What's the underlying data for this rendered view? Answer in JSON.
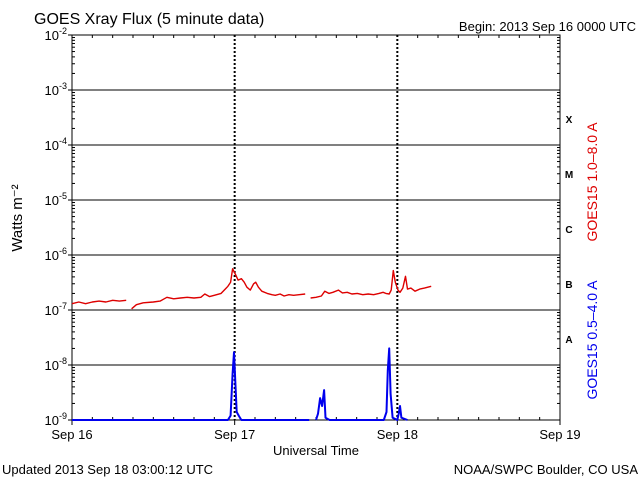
{
  "header": {
    "title": "GOES Xray Flux (5 minute data)",
    "begin_label": "Begin:  2013 Sep 16 0000 UTC"
  },
  "footer": {
    "updated": "Updated 2013 Sep 18 03:00:12 UTC",
    "credit": "NOAA/SWPC Boulder, CO USA"
  },
  "colors": {
    "long_channel": "#dd0000",
    "short_channel": "#0000ee"
  },
  "chart_data": {
    "type": "line",
    "title": "GOES Xray Flux (5 minute data)",
    "xlabel": "Universal Time",
    "ylabel": "Watts m⁻²",
    "y_scale": "log",
    "ylim": [
      1e-09,
      0.01
    ],
    "xlim": [
      0,
      72
    ],
    "x_unit": "hours since 2013 Sep 16 0000 UTC",
    "x_ticks": [
      {
        "value": 0,
        "label": "Sep 16"
      },
      {
        "value": 24,
        "label": "Sep 17"
      },
      {
        "value": 48,
        "label": "Sep 18"
      },
      {
        "value": 72,
        "label": "Sep 19"
      }
    ],
    "y_ticks": [
      {
        "exp": "-9",
        "value": 1e-09
      },
      {
        "exp": "-8",
        "value": 1e-08
      },
      {
        "exp": "-7",
        "value": 1e-07
      },
      {
        "exp": "-6",
        "value": 1e-06
      },
      {
        "exp": "-5",
        "value": 1e-05
      },
      {
        "exp": "-4",
        "value": 0.0001
      },
      {
        "exp": "-3",
        "value": 0.001
      },
      {
        "exp": "-2",
        "value": 0.01
      }
    ],
    "flare_classes": [
      {
        "label": "A",
        "value": 3e-08
      },
      {
        "label": "B",
        "value": 3e-07
      },
      {
        "label": "C",
        "value": 3e-06
      },
      {
        "label": "M",
        "value": 3e-05
      },
      {
        "label": "X",
        "value": 0.0003
      }
    ],
    "grid": true,
    "series": [
      {
        "name": "GOES15 1.0–8.0 A",
        "color": "#dd0000",
        "segments": [
          [
            [
              0,
              1.3e-07
            ],
            [
              1,
              1.4e-07
            ],
            [
              2,
              1.3e-07
            ],
            [
              3,
              1.4e-07
            ],
            [
              4,
              1.45e-07
            ],
            [
              5,
              1.4e-07
            ],
            [
              6,
              1.5e-07
            ],
            [
              7,
              1.45e-07
            ],
            [
              8,
              1.5e-07
            ]
          ],
          [
            [
              8.8,
              1.05e-07
            ],
            [
              9.5,
              1.25e-07
            ],
            [
              10.5,
              1.35e-07
            ],
            [
              12,
              1.4e-07
            ],
            [
              13,
              1.45e-07
            ],
            [
              13.6,
              1.6e-07
            ],
            [
              14,
              1.7e-07
            ],
            [
              15,
              1.6e-07
            ],
            [
              16,
              1.65e-07
            ],
            [
              17,
              1.7e-07
            ],
            [
              18,
              1.65e-07
            ],
            [
              19,
              1.7e-07
            ],
            [
              19.6,
              1.95e-07
            ],
            [
              20.3,
              1.75e-07
            ],
            [
              21,
              1.85e-07
            ],
            [
              22,
              2e-07
            ],
            [
              22.6,
              2.4e-07
            ],
            [
              23,
              2.7e-07
            ],
            [
              23.4,
              3.2e-07
            ],
            [
              23.7,
              5.6e-07
            ],
            [
              24.1,
              4.5e-07
            ],
            [
              24.5,
              3.5e-07
            ],
            [
              25,
              3.7e-07
            ],
            [
              25.4,
              3.2e-07
            ],
            [
              25.8,
              2.6e-07
            ],
            [
              26.3,
              2.3e-07
            ],
            [
              26.8,
              3e-07
            ],
            [
              27.1,
              3.2e-07
            ],
            [
              27.5,
              2.6e-07
            ],
            [
              28,
              2.2e-07
            ],
            [
              28.8,
              2e-07
            ],
            [
              29.5,
              1.9e-07
            ],
            [
              30,
              1.85e-07
            ],
            [
              30.7,
              1.95e-07
            ],
            [
              31.3,
              1.8e-07
            ],
            [
              32,
              1.9e-07
            ],
            [
              32.7,
              1.85e-07
            ],
            [
              33.5,
              1.9e-07
            ],
            [
              34.4,
              1.95e-07
            ]
          ],
          [
            [
              35.2,
              1.65e-07
            ],
            [
              36,
              1.7e-07
            ],
            [
              36.8,
              1.8e-07
            ],
            [
              37.3,
              2.2e-07
            ],
            [
              37.9,
              2e-07
            ],
            [
              38.5,
              2.1e-07
            ],
            [
              39.3,
              2.3e-07
            ],
            [
              39.9,
              2.05e-07
            ],
            [
              40.6,
              2.1e-07
            ],
            [
              41.3,
              1.95e-07
            ],
            [
              42.1,
              2e-07
            ],
            [
              42.9,
              1.9e-07
            ],
            [
              43.7,
              1.95e-07
            ],
            [
              44.5,
              1.9e-07
            ],
            [
              45.3,
              2e-07
            ],
            [
              45.9,
              2.1e-07
            ],
            [
              46.3,
              2e-07
            ],
            [
              46.8,
              1.95e-07
            ],
            [
              47.1,
              2.3e-07
            ],
            [
              47.4,
              5.2e-07
            ],
            [
              47.7,
              3.2e-07
            ],
            [
              48.1,
              2.3e-07
            ],
            [
              48.4,
              2.1e-07
            ],
            [
              48.8,
              2.5e-07
            ],
            [
              49.2,
              4.1e-07
            ],
            [
              49.5,
              2.4e-07
            ],
            [
              50,
              2.5e-07
            ],
            [
              50.6,
              2.2e-07
            ],
            [
              51.3,
              2.4e-07
            ],
            [
              52,
              2.5e-07
            ],
            [
              52.5,
              2.6e-07
            ],
            [
              53,
              2.7e-07
            ]
          ]
        ]
      },
      {
        "name": "GOES15 0.5–4.0 A",
        "color": "#0000ee",
        "segments": [
          [
            [
              0,
              1e-09
            ],
            [
              10,
              1e-09
            ],
            [
              17.5,
              1e-09
            ],
            [
              23,
              1e-09
            ],
            [
              23.4,
              1.2e-09
            ],
            [
              23.7,
              7e-09
            ],
            [
              23.9,
              1.7e-08
            ],
            [
              24.1,
              5e-09
            ],
            [
              24.3,
              1.4e-09
            ],
            [
              24.6,
              1.2e-09
            ],
            [
              25,
              1e-09
            ],
            [
              35,
              1e-09
            ]
          ],
          [
            [
              36,
              1e-09
            ],
            [
              36.3,
              1.3e-09
            ],
            [
              36.6,
              2.5e-09
            ],
            [
              36.9,
              1.8e-09
            ],
            [
              37.2,
              3.5e-09
            ],
            [
              37.4,
              1.1e-09
            ],
            [
              38,
              1e-09
            ],
            [
              46,
              1e-09
            ],
            [
              46.4,
              1.4e-09
            ],
            [
              46.6,
              8e-09
            ],
            [
              46.8,
              2e-08
            ],
            [
              47,
              3e-09
            ],
            [
              47.3,
              1.1e-09
            ],
            [
              48,
              1e-09
            ],
            [
              48.2,
              1.3e-09
            ],
            [
              48.4,
              1.8e-09
            ],
            [
              48.6,
              1.1e-09
            ],
            [
              49.5,
              1e-09
            ]
          ]
        ]
      }
    ]
  }
}
